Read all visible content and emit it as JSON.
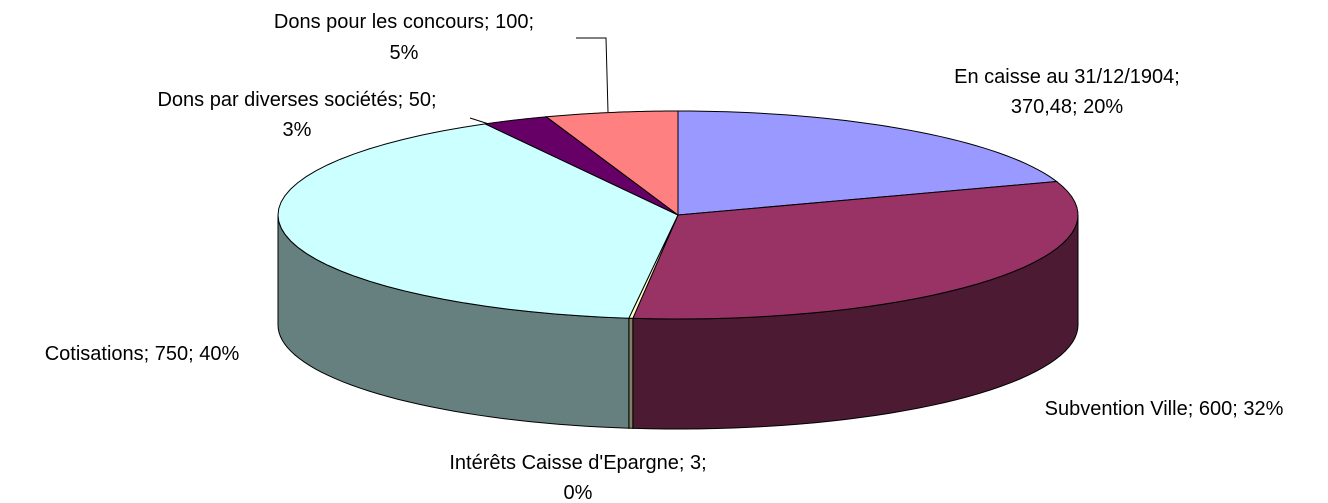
{
  "chart_data": {
    "type": "pie3d",
    "categories": [
      "En caisse au 31/12/1904",
      "Subvention Ville",
      "Intérêts Caisse d'Epargne",
      "Cotisations",
      "Dons par diverses sociétés",
      "Dons pour les concours"
    ],
    "values": [
      370.48,
      600,
      3,
      750,
      50,
      100
    ],
    "value_labels": [
      "370,48",
      "600",
      "3",
      "750",
      "50",
      "100"
    ],
    "percent_labels": [
      "20%",
      "32%",
      "0%",
      "40%",
      "3%",
      "5%"
    ],
    "label_separator": "; ",
    "colors": [
      "#9999ff",
      "#993366",
      "#ffffcc",
      "#ccffff",
      "#660066",
      "#ff8080"
    ]
  }
}
